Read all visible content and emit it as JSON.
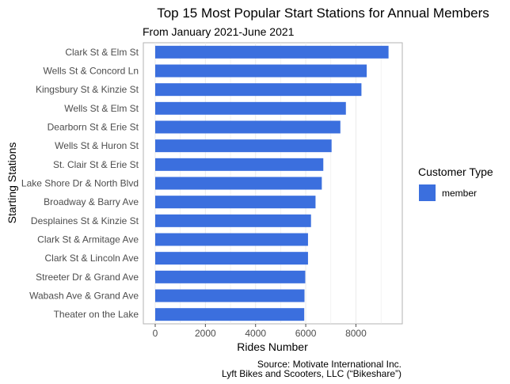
{
  "chart_data": {
    "type": "bar",
    "orientation": "horizontal",
    "title": "Top 15 Most Popular Start Stations for Annual Members",
    "subtitle": "From January 2021-June 2021",
    "xlabel": "Rides Number",
    "ylabel": "Starting Stations",
    "xlim": [
      0,
      9800
    ],
    "xticks": [
      0,
      2000,
      4000,
      6000,
      8000
    ],
    "grid": true,
    "legend": {
      "title": "Customer Type",
      "position": "right"
    },
    "categories": [
      "Clark St & Elm St",
      "Wells St & Concord Ln",
      "Kingsbury St & Kinzie St",
      "Wells St & Elm St",
      "Dearborn St & Erie St",
      "Wells St & Huron St",
      "St. Clair St & Erie St",
      "Lake Shore Dr & North Blvd",
      "Broadway & Barry Ave",
      "Desplaines St & Kinzie St",
      "Clark St & Armitage Ave",
      "Clark St & Lincoln Ave",
      "Streeter Dr & Grand Ave",
      "Wabash Ave & Grand Ave",
      "Theater on the Lake"
    ],
    "series": [
      {
        "name": "member",
        "color": "#3b6fde",
        "values": [
          9300,
          8430,
          8220,
          7600,
          7380,
          7030,
          6700,
          6640,
          6390,
          6210,
          6090,
          6090,
          5980,
          5950,
          5940
        ]
      }
    ],
    "caption": [
      "Source: Motivate International Inc.",
      "Lyft Bikes and Scooters, LLC (“Bikeshare”)"
    ]
  }
}
